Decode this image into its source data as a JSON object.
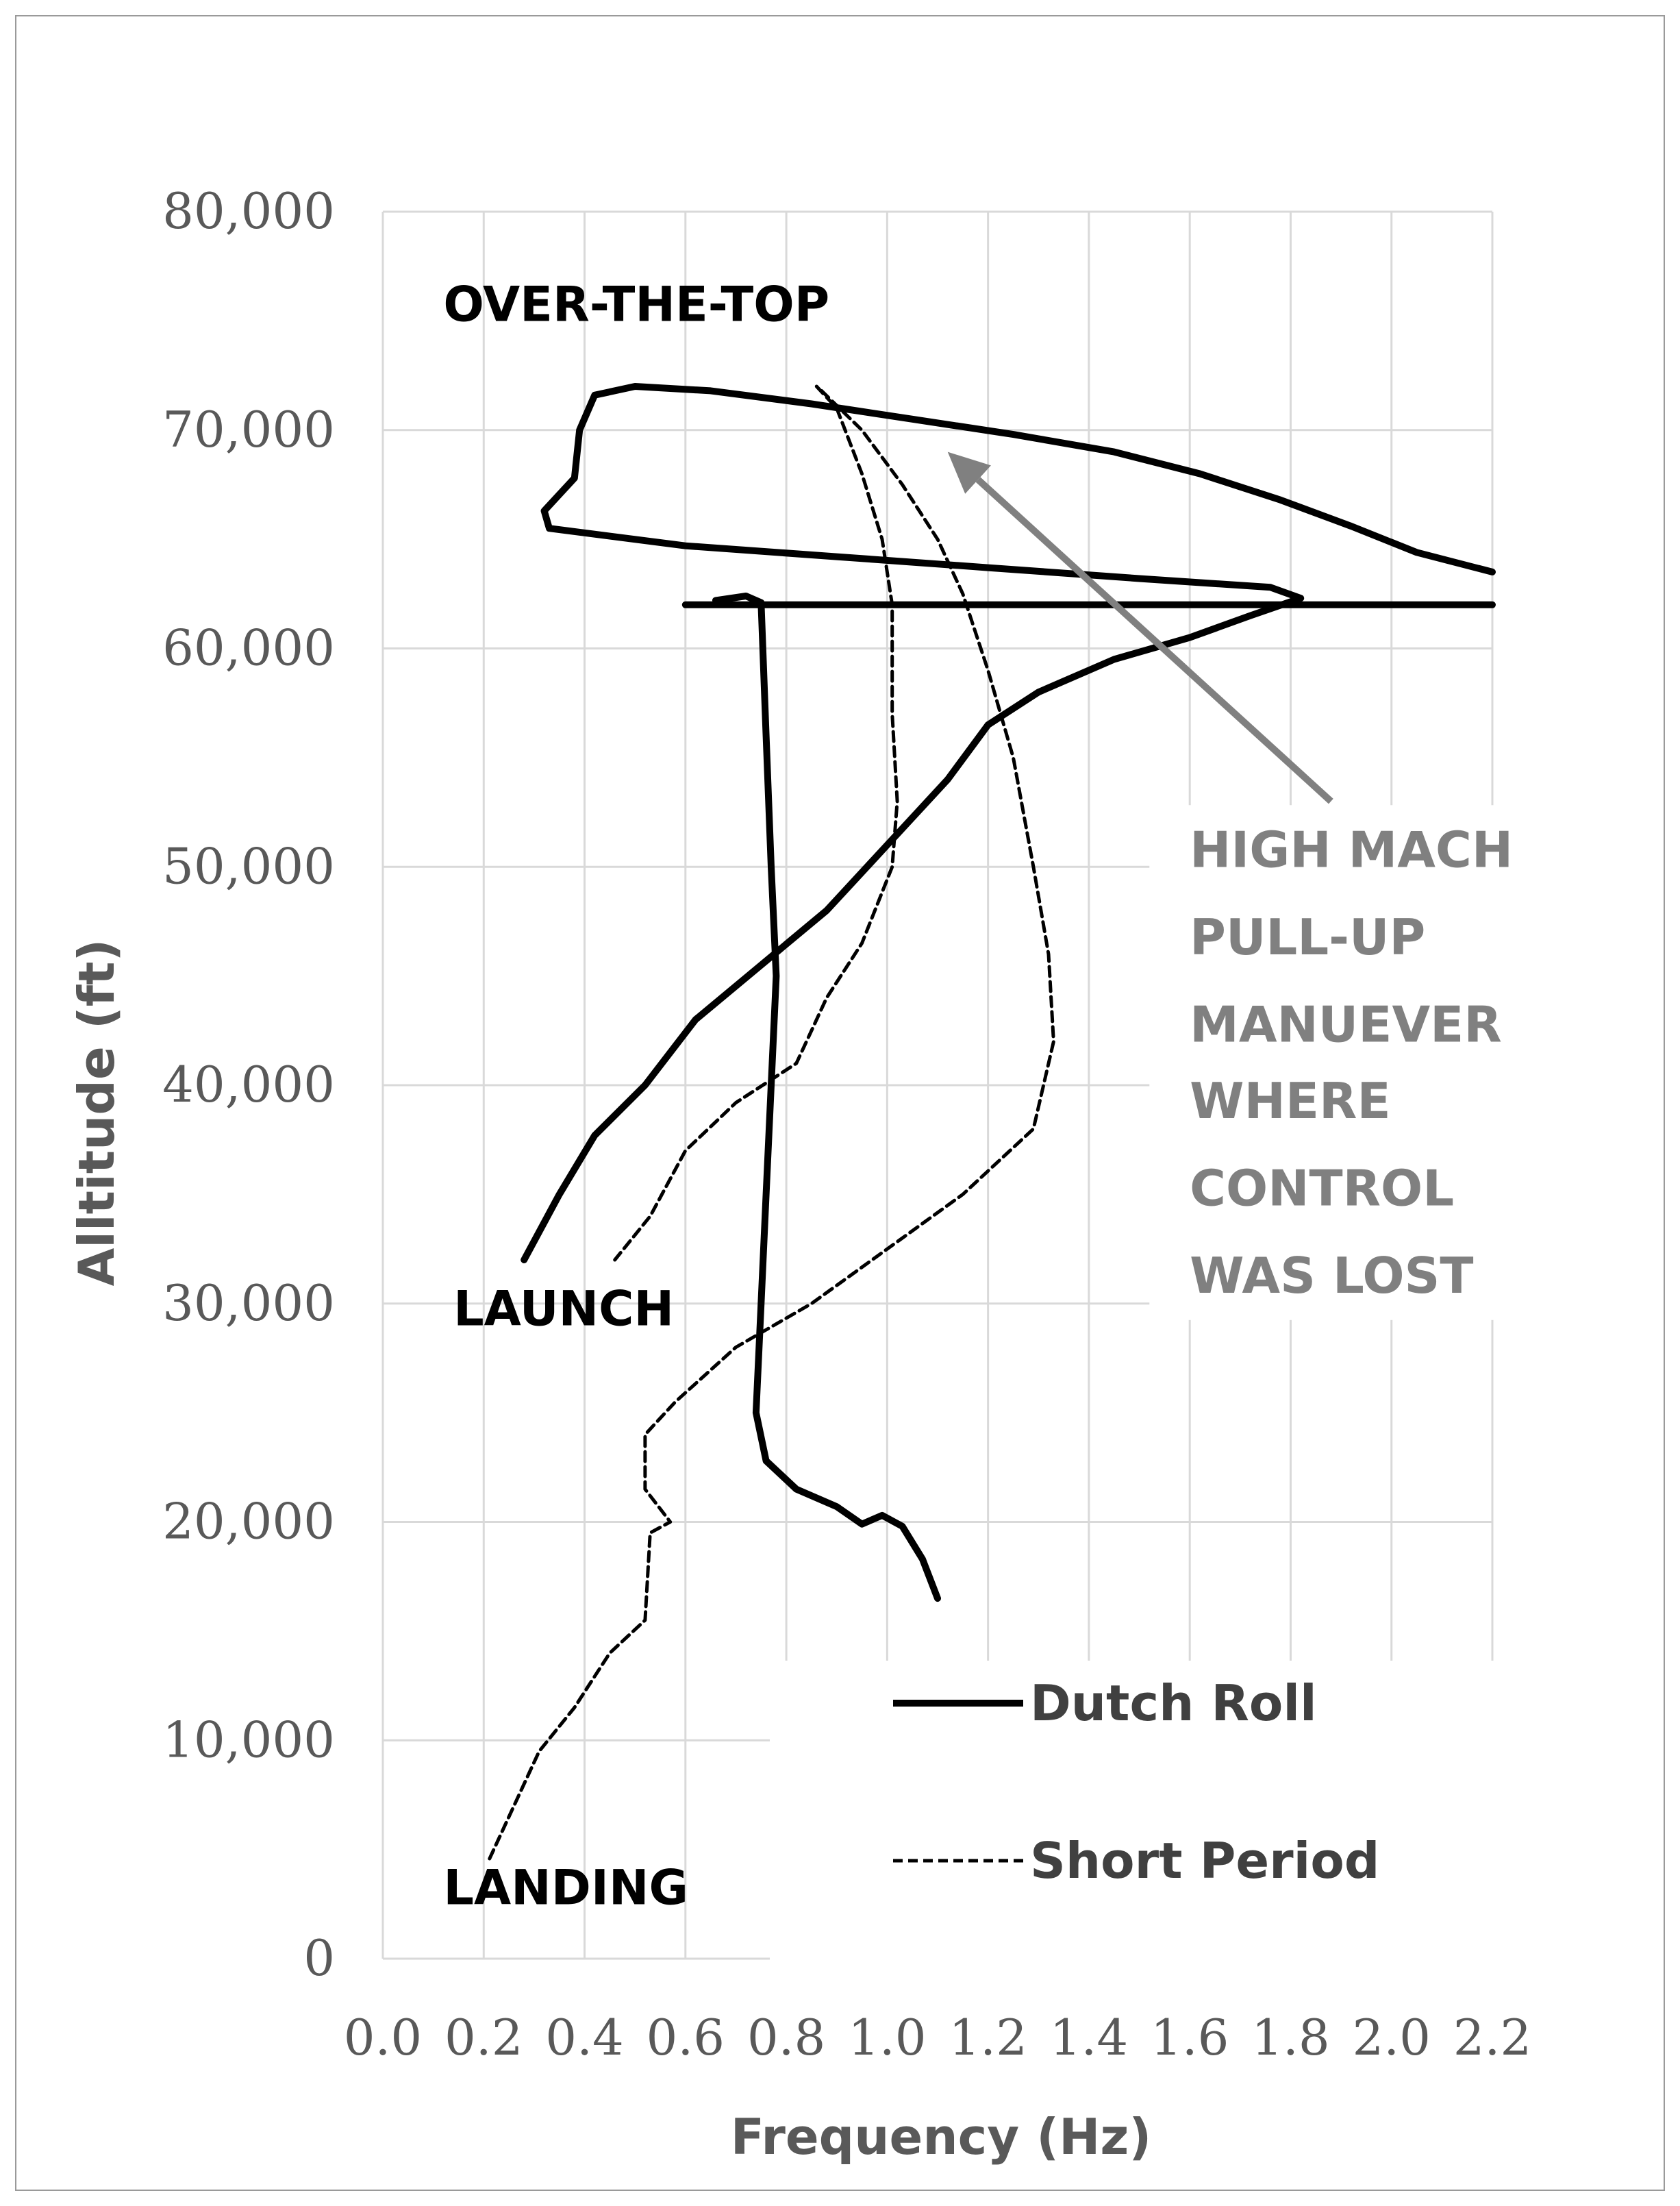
{
  "chart_data": {
    "type": "line",
    "xlabel": "Frequency (Hz)",
    "ylabel": "Alltitude (ft)",
    "xlim": [
      0,
      2.2
    ],
    "ylim": [
      0,
      80000
    ],
    "x_ticks": [
      "0.0",
      "0.2",
      "0.4",
      "0.6",
      "0.8",
      "1.0",
      "1.2",
      "1.4",
      "1.6",
      "1.8",
      "2.0",
      "2.2"
    ],
    "y_ticks": [
      "0",
      "10,000",
      "20,000",
      "30,000",
      "40,000",
      "50,000",
      "60,000",
      "70,000",
      "80,000"
    ],
    "grid": true,
    "legend_position": "bottom-right",
    "series": [
      {
        "name": "Dutch Roll",
        "style": "solid",
        "segments": [
          [
            [
              0.28,
              32000
            ],
            [
              0.35,
              35000
            ],
            [
              0.42,
              37700
            ],
            [
              0.52,
              40000
            ],
            [
              0.62,
              43000
            ],
            [
              0.75,
              45500
            ],
            [
              0.88,
              48000
            ],
            [
              1.0,
              51000
            ],
            [
              1.12,
              54000
            ],
            [
              1.2,
              56500
            ],
            [
              1.3,
              58000
            ],
            [
              1.45,
              59500
            ],
            [
              1.6,
              60500
            ],
            [
              1.72,
              61500
            ],
            [
              1.82,
              62300
            ],
            [
              1.76,
              62800
            ],
            [
              1.5,
              63200
            ],
            [
              1.2,
              63700
            ],
            [
              0.9,
              64200
            ],
            [
              0.6,
              64700
            ],
            [
              0.33,
              65500
            ],
            [
              0.32,
              66300
            ],
            [
              0.38,
              67800
            ],
            [
              0.39,
              70000
            ],
            [
              0.42,
              71600
            ],
            [
              0.5,
              72000
            ],
            [
              0.65,
              71800
            ],
            [
              0.85,
              71200
            ],
            [
              1.05,
              70500
            ],
            [
              1.25,
              69800
            ],
            [
              1.45,
              69000
            ],
            [
              1.62,
              68000
            ],
            [
              1.78,
              66800
            ],
            [
              1.92,
              65600
            ],
            [
              2.05,
              64400
            ],
            [
              2.2,
              63500
            ]
          ],
          [
            [
              0.6,
              62000
            ],
            [
              2.2,
              62000
            ]
          ],
          [
            [
              0.66,
              62200
            ],
            [
              0.72,
              62400
            ],
            [
              0.75,
              62100
            ],
            [
              0.76,
              56000
            ],
            [
              0.77,
              50000
            ],
            [
              0.78,
              45000
            ],
            [
              0.77,
              40000
            ],
            [
              0.76,
              35000
            ],
            [
              0.75,
              30000
            ],
            [
              0.74,
              25000
            ],
            [
              0.76,
              22800
            ],
            [
              0.82,
              21500
            ],
            [
              0.9,
              20700
            ],
            [
              0.95,
              19900
            ],
            [
              0.99,
              20300
            ],
            [
              1.03,
              19800
            ],
            [
              1.07,
              18300
            ],
            [
              1.1,
              16500
            ]
          ]
        ]
      },
      {
        "name": "Short Period",
        "style": "dashed",
        "segments": [
          [
            [
              0.86,
              72000
            ],
            [
              0.9,
              71000
            ],
            [
              0.95,
              68000
            ],
            [
              0.99,
              65000
            ],
            [
              1.01,
              62000
            ],
            [
              1.01,
              57000
            ],
            [
              1.02,
              53000
            ],
            [
              1.01,
              50000
            ],
            [
              0.95,
              46500
            ],
            [
              0.88,
              44000
            ],
            [
              0.82,
              41000
            ],
            [
              0.7,
              39200
            ],
            [
              0.6,
              37000
            ],
            [
              0.53,
              34000
            ],
            [
              0.46,
              32000
            ]
          ],
          [
            [
              0.87,
              71800
            ],
            [
              0.95,
              70000
            ],
            [
              1.03,
              67500
            ],
            [
              1.1,
              65000
            ],
            [
              1.15,
              62500
            ],
            [
              1.2,
              59000
            ],
            [
              1.25,
              55000
            ],
            [
              1.29,
              50000
            ],
            [
              1.32,
              46000
            ],
            [
              1.33,
              42000
            ],
            [
              1.29,
              38000
            ],
            [
              1.15,
              35000
            ],
            [
              1.0,
              32500
            ],
            [
              0.85,
              30000
            ],
            [
              0.7,
              28000
            ],
            [
              0.58,
              25500
            ],
            [
              0.52,
              24000
            ],
            [
              0.52,
              21500
            ],
            [
              0.57,
              20000
            ],
            [
              0.53,
              19500
            ],
            [
              0.52,
              15500
            ],
            [
              0.45,
              14000
            ],
            [
              0.38,
              11500
            ],
            [
              0.31,
              9500
            ],
            [
              0.25,
              6500
            ],
            [
              0.21,
              4500
            ]
          ]
        ]
      }
    ],
    "annotations": [
      {
        "text": "OVER-THE-TOP",
        "x": 0.12,
        "y": 75000
      },
      {
        "text": "LAUNCH",
        "x": 0.14,
        "y": 29000
      },
      {
        "text": "LANDING",
        "x": 0.12,
        "y": 2500
      },
      {
        "text": "HIGH MACH",
        "x": 1.6,
        "y": 50000
      },
      {
        "text": "PULL-UP",
        "x": 1.6,
        "y": 46000
      },
      {
        "text": "MANUEVER",
        "x": 1.6,
        "y": 42000
      },
      {
        "text": "WHERE",
        "x": 1.6,
        "y": 38500
      },
      {
        "text": "CONTROL",
        "x": 1.6,
        "y": 34500
      },
      {
        "text": "WAS LOST",
        "x": 1.6,
        "y": 30500
      }
    ],
    "arrow": {
      "from": [
        1.88,
        53000
      ],
      "to": [
        1.12,
        69000
      ],
      "color": "#808080"
    }
  },
  "colors": {
    "primary_line": "#000000",
    "annotation_gray": "#808080",
    "tick_text": "#595959",
    "grid": "#d9d9d9"
  }
}
